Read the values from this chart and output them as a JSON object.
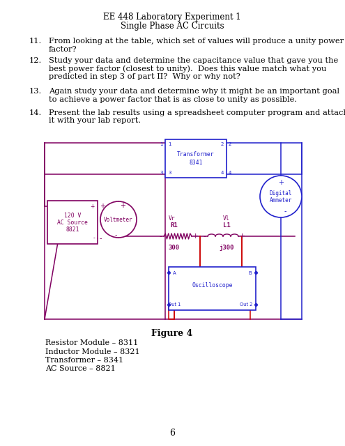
{
  "title_line1": "EE 448 Laboratory Experiment 1",
  "title_line2": "Single Phase AC Circuits",
  "q11_num": "11.",
  "q11_text": "From looking at the table, which set of values will produce a unity power factor?",
  "q12_num": "12.",
  "q12_text": "Study your data and determine the capacitance value that gave you the best power factor (closest to unity).  Does this value match what you predicted in step 3 of part II?  Why or why not?",
  "q13_num": "13.",
  "q13_text": "Again study your data and determine why it might be an important goal to achieve a power factor that is as close to unity as possible.",
  "q14_num": "14.",
  "q14_text": "Present the lab results using a spreadsheet computer program and attach it with your lab report.",
  "figure_label": "Figure 4",
  "legend_lines": [
    "Resistor Module – 8311",
    "Inductor Module – 8321",
    "Transformer – 8341",
    "AC Source – 8821"
  ],
  "page_number": "6",
  "purple": "#800060",
  "blue": "#2020CC",
  "red": "#CC0000"
}
